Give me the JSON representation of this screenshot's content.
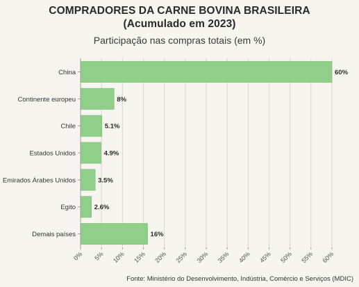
{
  "chart_data": {
    "type": "bar",
    "orientation": "horizontal",
    "title": "COMPRADORES DA CARNE BOVINA BRASILEIRA",
    "title_line2": "(Acumulado em 2023)",
    "subtitle": "Participação nas compras totais (em %)",
    "categories": [
      "China",
      "Continente europeu",
      "Chile",
      "Estados Unidos",
      "Emirados Árabes Unidos",
      "Egito",
      "Demais países"
    ],
    "values": [
      60,
      8,
      5.1,
      4.9,
      3.5,
      2.6,
      16
    ],
    "data_labels": [
      "60%",
      "8%",
      "5.1%",
      "4.9%",
      "3.5%",
      "2.6%",
      "16%"
    ],
    "x_ticks": [
      "0%",
      "5%",
      "10%",
      "15%",
      "20%",
      "25%",
      "30%",
      "35%",
      "40%",
      "45%",
      "50%",
      "55%",
      "60%"
    ],
    "x_tick_values": [
      0,
      5,
      10,
      15,
      20,
      25,
      30,
      35,
      40,
      45,
      50,
      55,
      60
    ],
    "xlim": [
      0,
      60
    ],
    "grid": true,
    "legend": "none",
    "source": "Fonte: Ministério do Desenvolvimento, Indústria, Comércio e Serviços (MDIC)",
    "colors": {
      "bar": "#8fcf8a",
      "bar_edge": "#7cc077",
      "grid": "#d7d7d2",
      "background": "#f6f5ef"
    }
  }
}
